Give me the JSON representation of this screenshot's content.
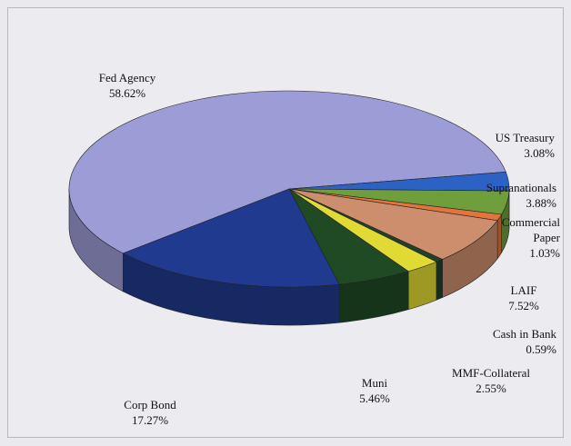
{
  "chart_data": {
    "type": "pie3d",
    "categories": [
      "Fed Agency",
      "US Treasury",
      "Supranationals",
      "Commercial Paper",
      "LAIF",
      "Cash in Bank",
      "MMF-Collateral",
      "Muni",
      "Corp Bond"
    ],
    "values": [
      58.62,
      3.08,
      3.88,
      1.03,
      7.52,
      0.59,
      2.55,
      5.46,
      17.27
    ],
    "value_labels": [
      "58.62%",
      "3.08%",
      "3.88%",
      "1.03%",
      "7.52%",
      "0.59%",
      "2.55%",
      "5.46%",
      "17.27%"
    ],
    "colors": [
      "#9c9cd6",
      "#2c62c4",
      "#6f9e3c",
      "#e2743c",
      "#cc8e6c",
      "#23402a",
      "#e2da34",
      "#1f4a24",
      "#1f3a8e"
    ]
  }
}
